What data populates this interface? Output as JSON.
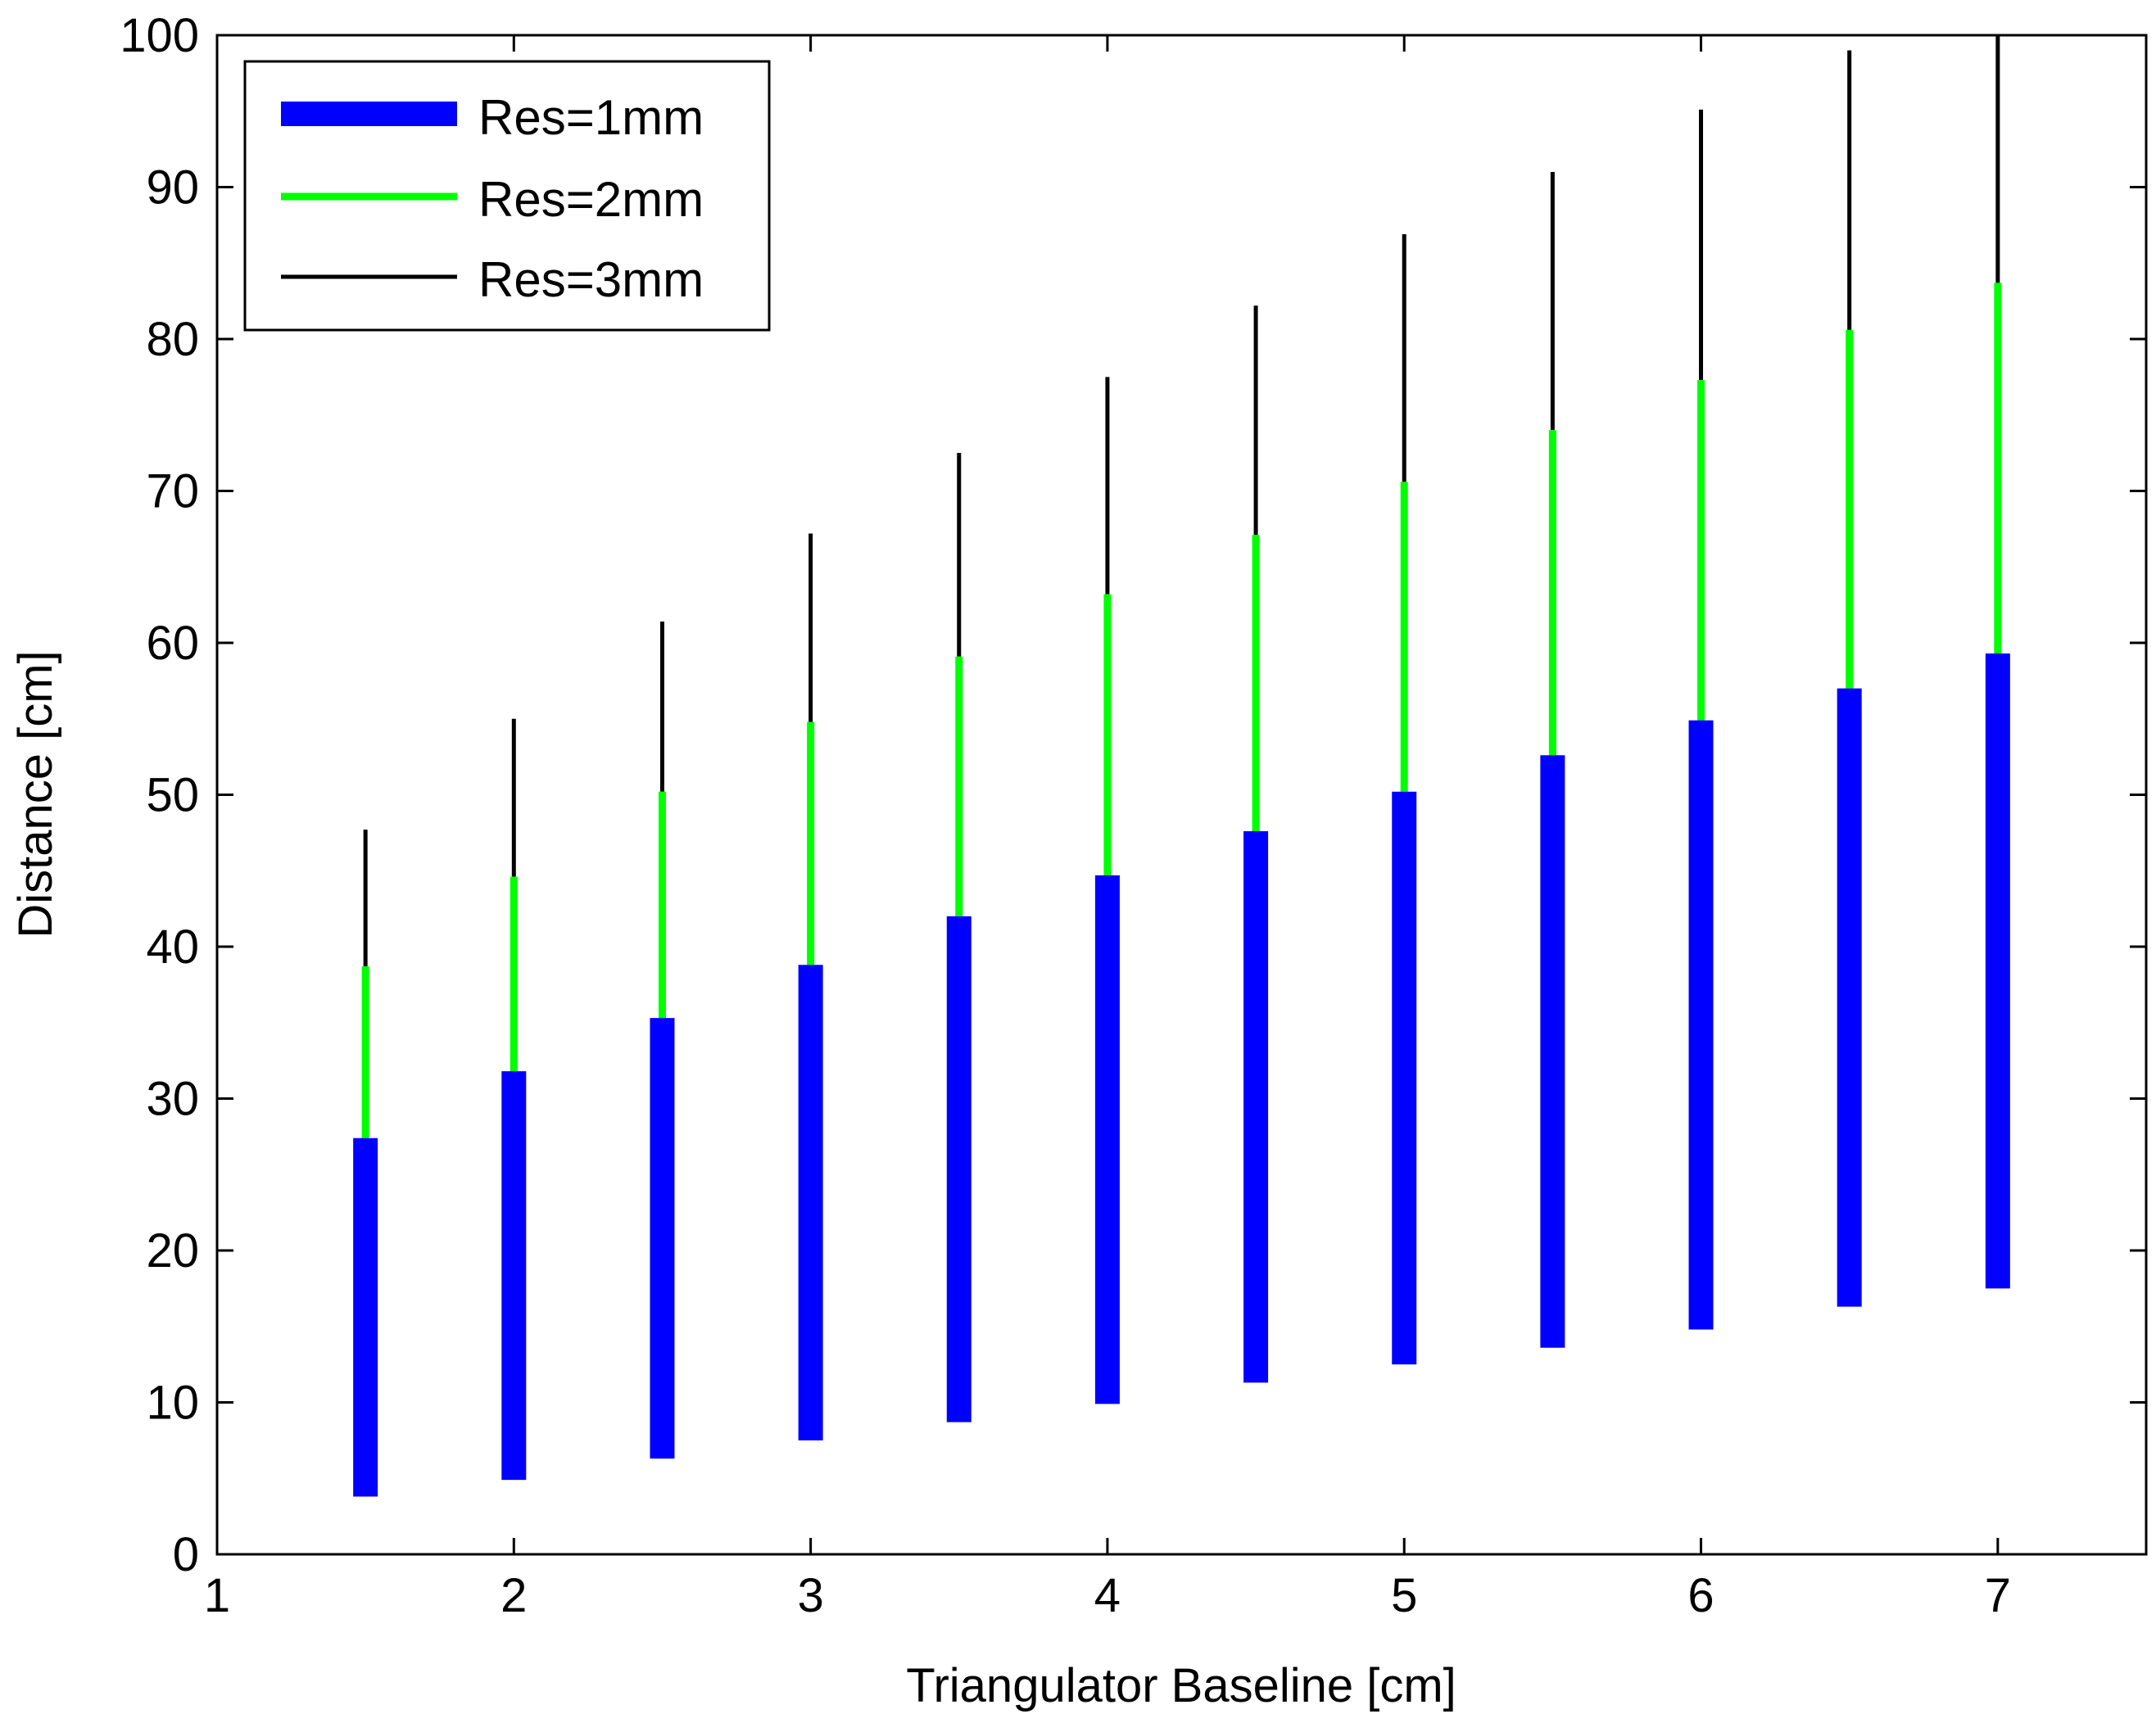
{
  "chart_data": {
    "type": "range-bar",
    "title": "",
    "xlabel": "Triangulator Baseline [cm]",
    "ylabel": "Distance [cm]",
    "xlim": [
      1,
      7.5
    ],
    "ylim": [
      0,
      100
    ],
    "xticks": [
      "1",
      "2",
      "3",
      "4",
      "5",
      "6",
      "7"
    ],
    "yticks": [
      "0",
      "10",
      "20",
      "30",
      "40",
      "50",
      "60",
      "70",
      "80",
      "90",
      "100"
    ],
    "grid": false,
    "legend_position": "top-left",
    "x": [
      1.5,
      2.0,
      2.5,
      3.0,
      3.5,
      4.0,
      4.5,
      5.0,
      5.5,
      6.0,
      6.5,
      7.0
    ],
    "series": [
      {
        "name": "Res=1mm",
        "color": "#0000ff",
        "low": [
          3.8,
          4.9,
          6.3,
          7.5,
          8.7,
          9.9,
          11.3,
          12.5,
          13.6,
          14.8,
          16.3,
          17.5
        ],
        "high": [
          27.4,
          31.8,
          35.3,
          38.8,
          42.0,
          44.7,
          47.6,
          50.2,
          52.6,
          54.9,
          57.0,
          59.3
        ]
      },
      {
        "name": "Res=2mm",
        "color": "#00ff00",
        "low": [
          27.4,
          31.8,
          35.3,
          38.8,
          42.0,
          44.7,
          47.6,
          50.2,
          52.6,
          54.9,
          57.0,
          59.3
        ],
        "high": [
          38.7,
          44.6,
          50.2,
          54.8,
          59.1,
          63.2,
          67.1,
          70.6,
          74.0,
          77.3,
          80.6,
          83.7
        ]
      },
      {
        "name": "Res=3mm",
        "color": "#000000",
        "low": [
          38.7,
          44.6,
          50.2,
          54.8,
          59.1,
          63.2,
          67.1,
          70.6,
          74.0,
          77.3,
          80.6,
          83.7
        ],
        "high": [
          47.7,
          55.0,
          61.4,
          67.2,
          72.5,
          77.5,
          82.2,
          86.9,
          91.0,
          95.1,
          99.0,
          100
        ]
      }
    ]
  }
}
